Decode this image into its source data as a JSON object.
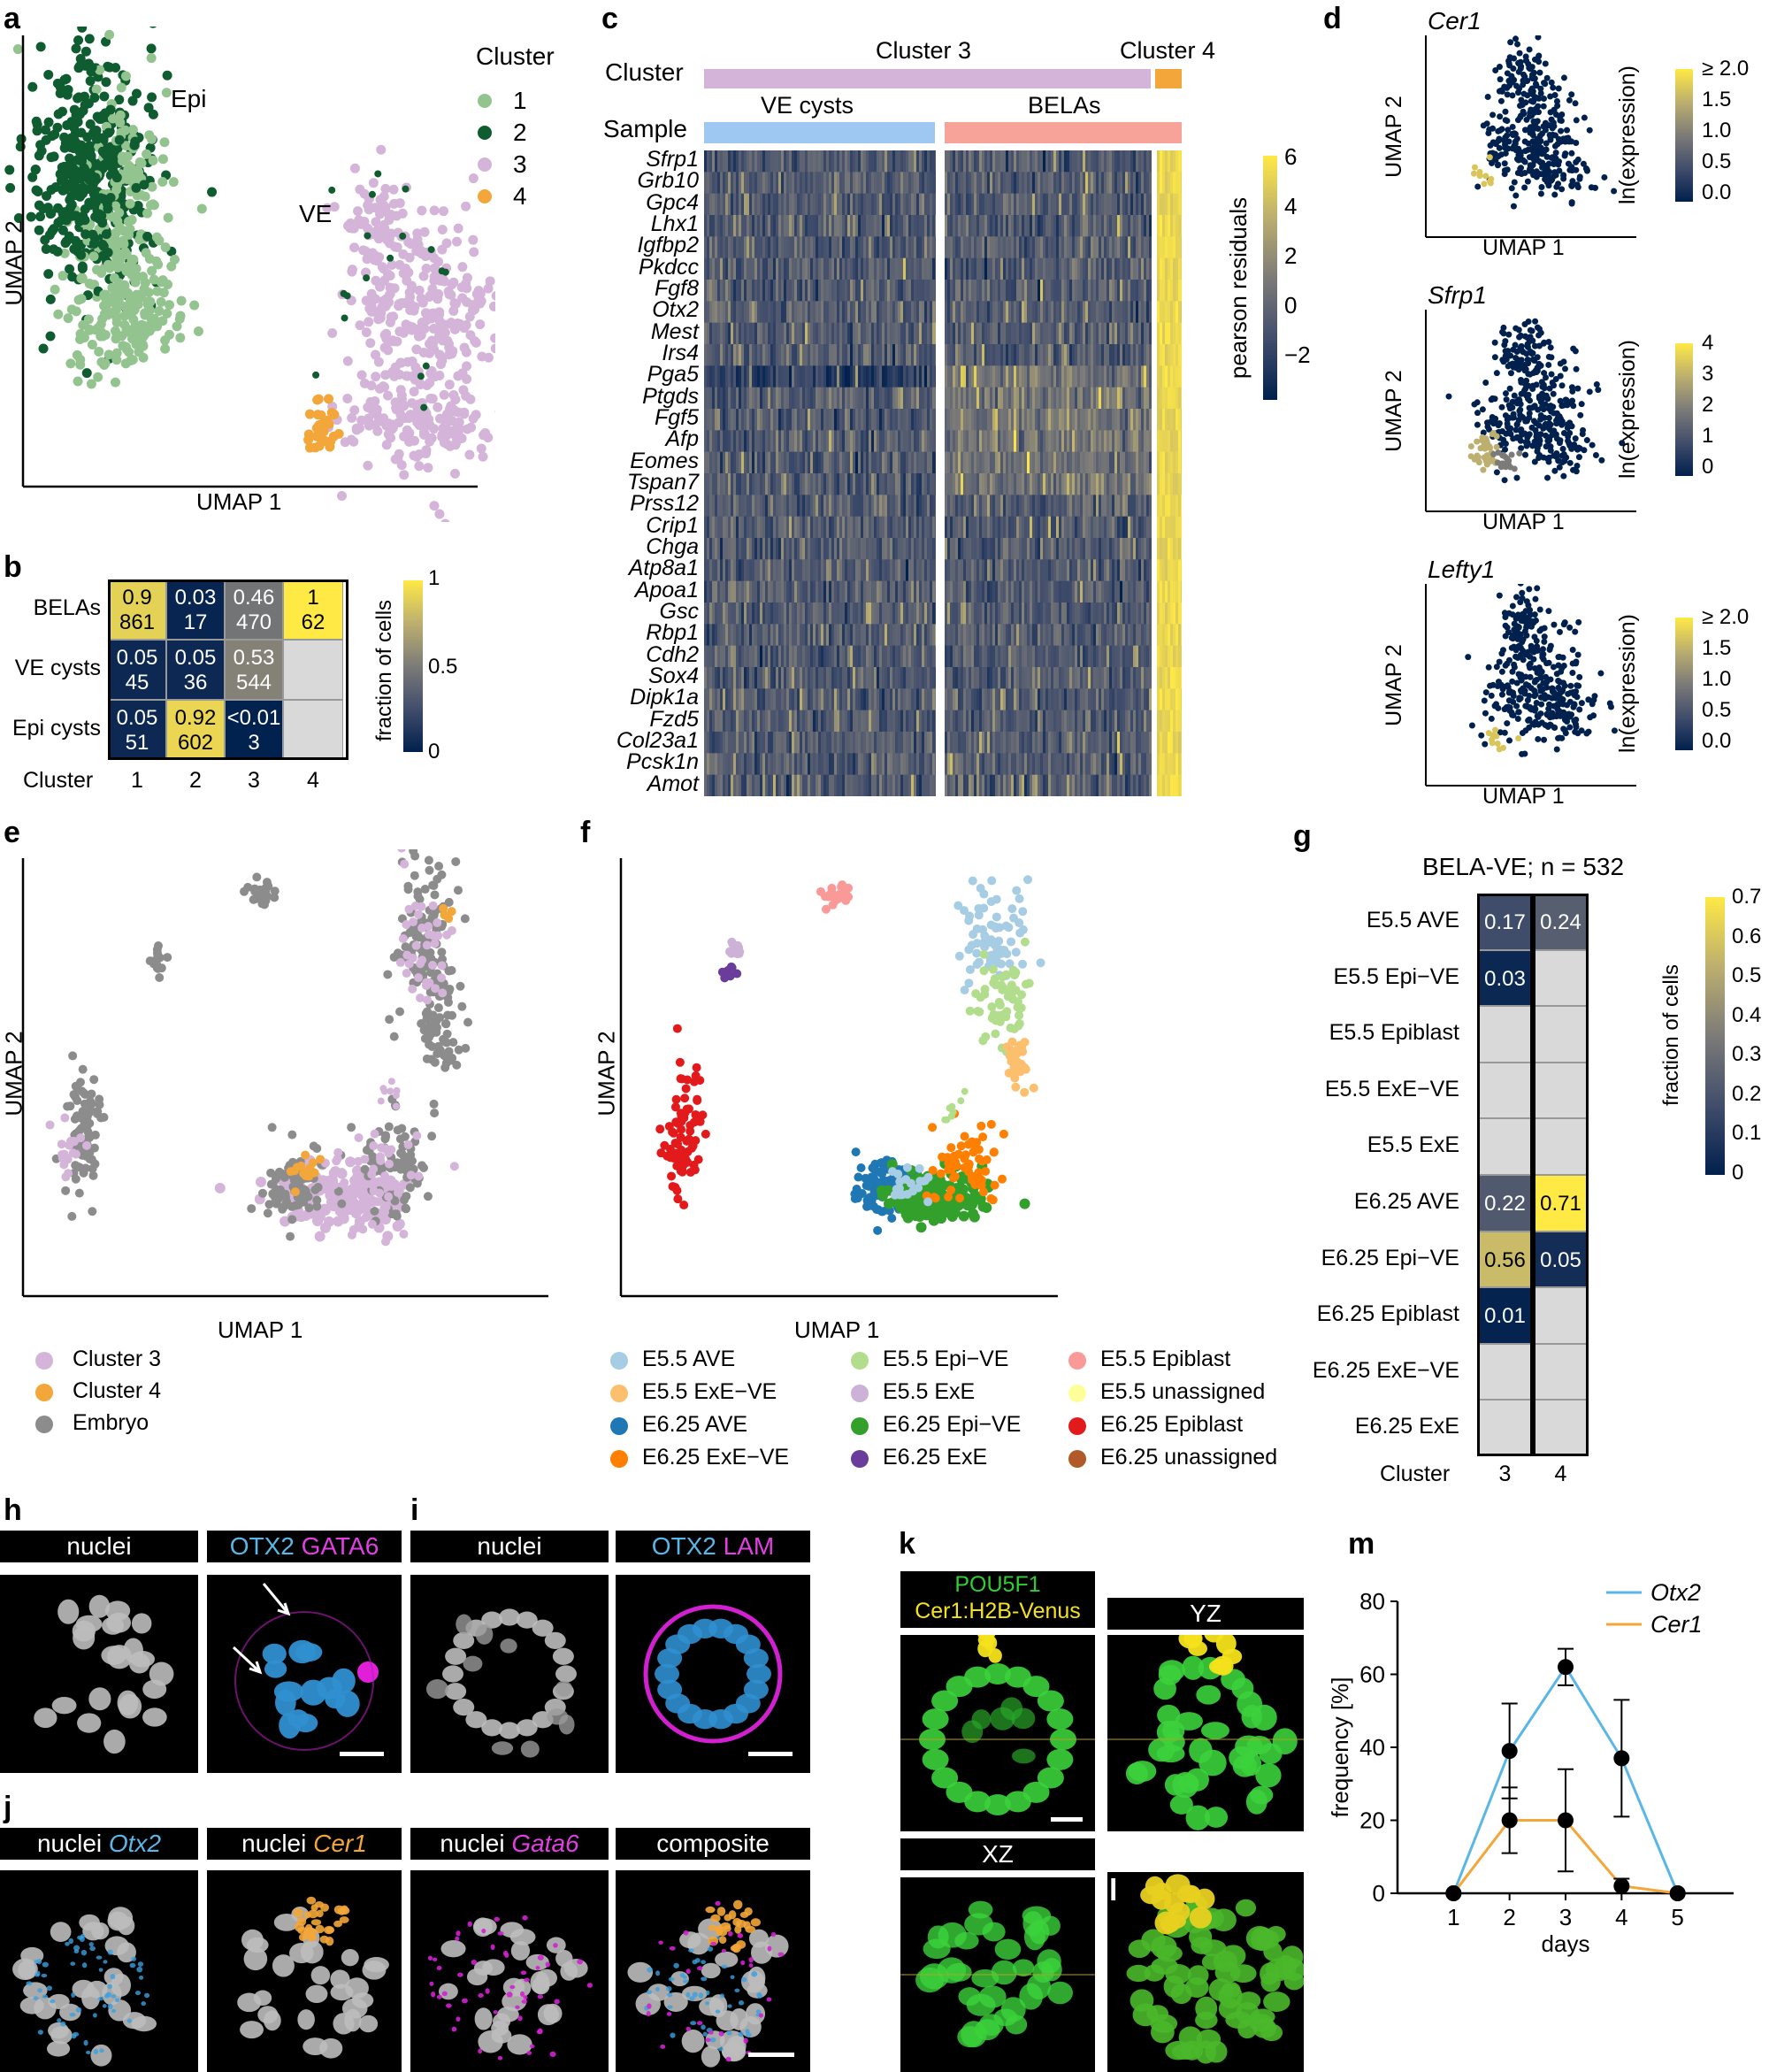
{
  "panel_letters": {
    "a": "a",
    "b": "b",
    "c": "c",
    "d": "d",
    "e": "e",
    "f": "f",
    "g": "g",
    "h": "h",
    "i": "i",
    "j": "j",
    "k": "k",
    "l": "l",
    "m": "m"
  },
  "panel_a": {
    "xlabel": "UMAP 1",
    "ylabel": "UMAP 2",
    "label_epi": "Epi",
    "label_ve": "VE",
    "legend_title": "Cluster",
    "legend": [
      {
        "label": "1",
        "color": "#93c48f"
      },
      {
        "label": "2",
        "color": "#0e5c2f"
      },
      {
        "label": "3",
        "color": "#d4b4d8"
      },
      {
        "label": "4",
        "color": "#f3a63a"
      }
    ]
  },
  "panel_b": {
    "rows": [
      "BELAs",
      "VE cysts",
      "Epi cysts"
    ],
    "cols": [
      "1",
      "2",
      "3",
      "4"
    ],
    "xlabel": "Cluster",
    "colorbar_label": "fraction of cells",
    "colorbar_ticks": [
      "1",
      "0.5",
      "0"
    ],
    "cells": [
      [
        {
          "frac": "0.9",
          "n": "861",
          "v": 0.9
        },
        {
          "frac": "0.03",
          "n": "17",
          "v": 0.03
        },
        {
          "frac": "0.46",
          "n": "470",
          "v": 0.46
        },
        {
          "frac": "1",
          "n": "62",
          "v": 1
        }
      ],
      [
        {
          "frac": "0.05",
          "n": "45",
          "v": 0.05
        },
        {
          "frac": "0.05",
          "n": "36",
          "v": 0.05
        },
        {
          "frac": "0.53",
          "n": "544",
          "v": 0.53
        },
        {
          "frac": "",
          "n": "",
          "v": null
        }
      ],
      [
        {
          "frac": "0.05",
          "n": "51",
          "v": 0.05
        },
        {
          "frac": "0.92",
          "n": "602",
          "v": 0.92
        },
        {
          "frac": "<0.01",
          "n": "3",
          "v": 0.005
        },
        {
          "frac": "",
          "n": "",
          "v": null
        }
      ]
    ]
  },
  "panel_c": {
    "row_cluster": "Cluster",
    "row_sample": "Sample",
    "cluster3": "Cluster 3",
    "cluster4": "Cluster 4",
    "sample_ve": "VE cysts",
    "sample_belas": "BELAs",
    "colorbar_label": "pearson residuals",
    "colorbar_ticks": [
      "6",
      "4",
      "2",
      "0",
      "−2"
    ],
    "genes": [
      "Sfrp1",
      "Grb10",
      "Gpc4",
      "Lhx1",
      "Igfbp2",
      "Pkdcc",
      "Fgf8",
      "Otx2",
      "Mest",
      "Irs4",
      "Pga5",
      "Ptgds",
      "Fgf5",
      "Afp",
      "Eomes",
      "Tspan7",
      "Prss12",
      "Crip1",
      "Chga",
      "Atp8a1",
      "Apoa1",
      "Gsc",
      "Rbp1",
      "Cdh2",
      "Sox4",
      "Dipk1a",
      "Fzd5",
      "Col23a1",
      "Pcsk1n",
      "Amot"
    ]
  },
  "panel_d": {
    "xlabel": "UMAP 1",
    "ylabel": "UMAP 2",
    "cb_label": "ln(expression)",
    "plots": [
      {
        "gene": "Cer1",
        "ticks": [
          "≥ 2.0",
          "1.5",
          "1.0",
          "0.5",
          "0.0"
        ]
      },
      {
        "gene": "Sfrp1",
        "ticks": [
          "4",
          "3",
          "2",
          "1",
          "0"
        ]
      },
      {
        "gene": "Lefty1",
        "ticks": [
          "≥ 2.0",
          "1.5",
          "1.0",
          "0.5",
          "0.0"
        ]
      }
    ]
  },
  "panel_e": {
    "xlabel": "UMAP 1",
    "ylabel": "UMAP 2",
    "legend": [
      {
        "label": "Cluster 3",
        "color": "#d4b4d8"
      },
      {
        "label": "Cluster 4",
        "color": "#f3a63a"
      },
      {
        "label": "Embryo",
        "color": "#8c8c8c"
      }
    ]
  },
  "panel_f": {
    "xlabel": "UMAP 1",
    "ylabel": "UMAP 2",
    "legend": [
      {
        "label": "E5.5 AVE",
        "color": "#a6cde3"
      },
      {
        "label": "E5.5 Epi−VE",
        "color": "#b1dd8c"
      },
      {
        "label": "E5.5 Epiblast",
        "color": "#fa9a98"
      },
      {
        "label": "E5.5 ExE−VE",
        "color": "#fcbf6e"
      },
      {
        "label": "E5.5 ExE",
        "color": "#cbb2d6"
      },
      {
        "label": "E5.5 unassigned",
        "color": "#ffff99"
      },
      {
        "label": "E6.25 AVE",
        "color": "#1f78b4"
      },
      {
        "label": "E6.25 Epi−VE",
        "color": "#33a02c"
      },
      {
        "label": "E6.25 Epiblast",
        "color": "#e31a1c"
      },
      {
        "label": "E6.25 ExE−VE",
        "color": "#ff7f00"
      },
      {
        "label": "E6.25 ExE",
        "color": "#6a3d9a"
      },
      {
        "label": "E6.25 unassigned",
        "color": "#b15928"
      }
    ]
  },
  "panel_g": {
    "title": "BELA-VE; n = 532",
    "rows": [
      "E5.5 AVE",
      "E5.5 Epi−VE",
      "E5.5 Epiblast",
      "E5.5 ExE−VE",
      "E5.5 ExE",
      "E6.25 AVE",
      "E6.25 Epi−VE",
      "E6.25 Epiblast",
      "E6.25 ExE−VE",
      "E6.25 ExE"
    ],
    "cols": [
      "3",
      "4"
    ],
    "xlabel": "Cluster",
    "colorbar_label": "fraction of cells",
    "colorbar_ticks": [
      "0.7",
      "0.6",
      "0.5",
      "0.4",
      "0.3",
      "0.2",
      "0.1",
      "0"
    ],
    "values": [
      [
        0.17,
        0.24
      ],
      [
        0.03,
        null
      ],
      [
        null,
        null
      ],
      [
        null,
        null
      ],
      [
        null,
        null
      ],
      [
        0.22,
        0.71
      ],
      [
        0.56,
        0.05
      ],
      [
        0.01,
        null
      ],
      [
        null,
        null
      ],
      [
        null,
        null
      ]
    ],
    "labels": [
      [
        "0.17",
        "0.24"
      ],
      [
        "0.03",
        ""
      ],
      [
        "",
        ""
      ],
      [
        "",
        ""
      ],
      [
        "",
        ""
      ],
      [
        "0.22",
        "0.71"
      ],
      [
        "0.56",
        "0.05"
      ],
      [
        "0.01",
        ""
      ],
      [
        "",
        ""
      ],
      [
        "",
        ""
      ]
    ]
  },
  "panel_h": {
    "bar1": "nuclei",
    "bar2_a": "OTX2",
    "bar2_b": "GATA6"
  },
  "panel_i": {
    "bar1": "nuclei",
    "bar2_a": "OTX2",
    "bar2_b": "LAM"
  },
  "panel_j": {
    "prefix": "nuclei",
    "g1": "Otx2",
    "g2": "Cer1",
    "g3": "Gata6",
    "composite": "composite"
  },
  "panel_k": {
    "line1": "POU5F1",
    "line2": "Cer1:H2B-Venus",
    "yz": "YZ",
    "xz": "XZ"
  },
  "chart_data": {
    "type": "line",
    "xlabel": "days",
    "ylabel": "frequency [%]",
    "x": [
      1,
      2,
      3,
      4,
      5
    ],
    "xticks": [
      "1",
      "2",
      "3",
      "4",
      "5"
    ],
    "ylim": [
      0,
      80
    ],
    "yticks": [
      "0",
      "20",
      "40",
      "60",
      "80"
    ],
    "series": [
      {
        "name": "Otx2",
        "color": "#5bb6e8",
        "values": [
          0,
          39,
          62,
          37,
          0
        ],
        "err": [
          0,
          13,
          5,
          16,
          0
        ]
      },
      {
        "name": "Cer1",
        "color": "#f3a63a",
        "values": [
          0,
          20,
          20,
          2,
          0
        ],
        "err": [
          0,
          9,
          14,
          2,
          0
        ]
      }
    ],
    "legend": "top-right"
  }
}
